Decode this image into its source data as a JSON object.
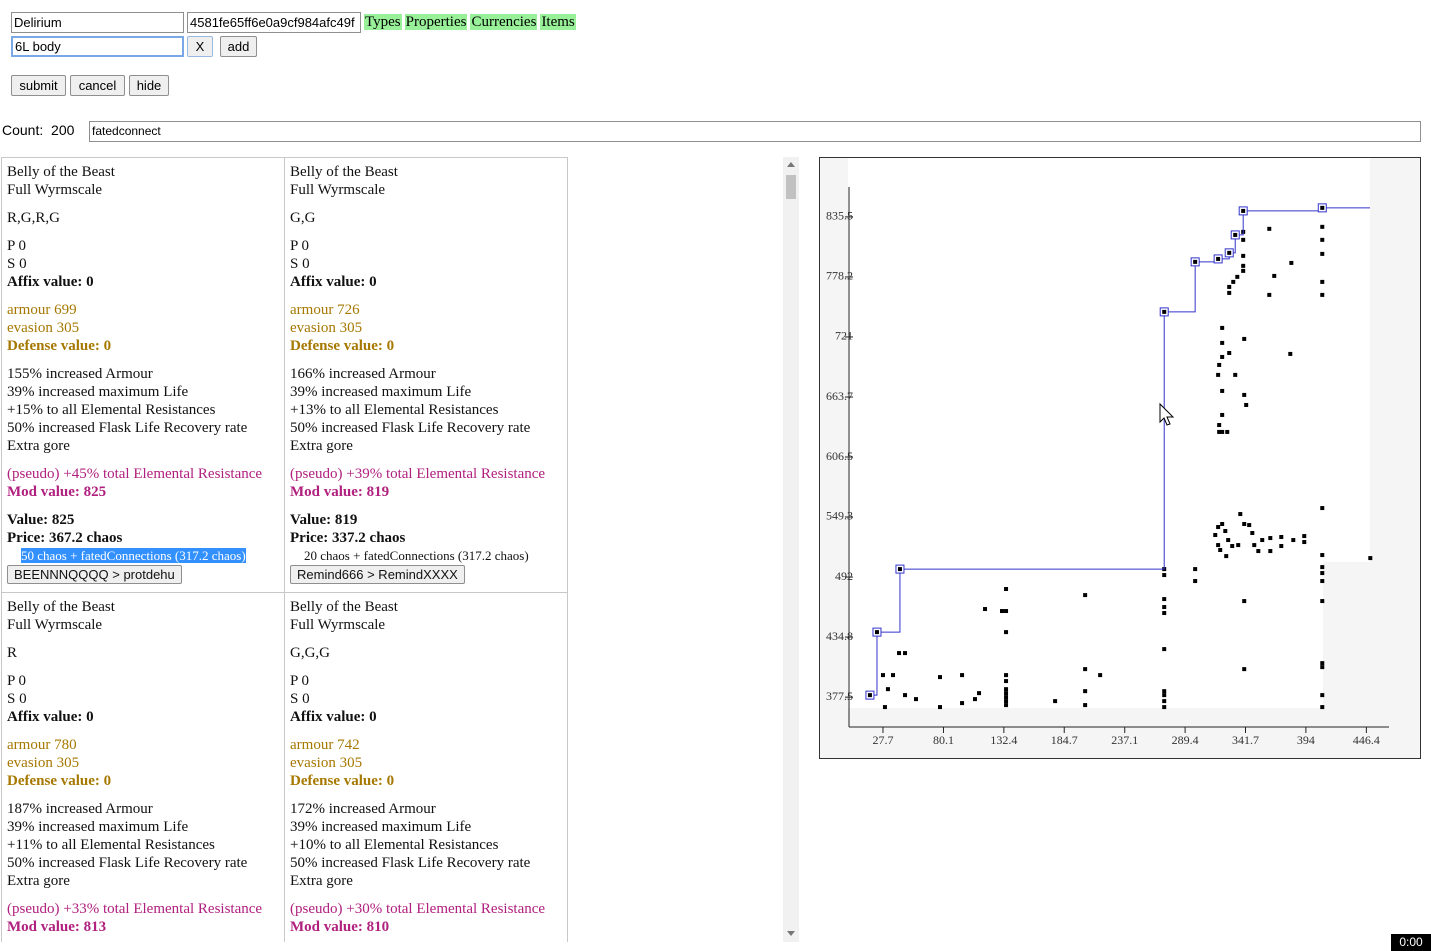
{
  "search": {
    "league": "Delirium",
    "hash": "4581fe65ff6e0a9cf984afc49f",
    "tabs": [
      "Types",
      "Properties",
      "Currencies",
      "Items"
    ],
    "query": "6L body",
    "remove_button": "X",
    "add_button": "add",
    "actions": [
      "submit",
      "cancel",
      "hide"
    ],
    "count_label": "Count:",
    "count": 200,
    "filter": "fatedconnect"
  },
  "items": [
    {
      "name": "Belly of the Beast",
      "base": "Full Wyrmscale",
      "sockets": "R,G,R,G",
      "prefix": "P 0",
      "suffix": "S 0",
      "affix_value": "Affix value: 0",
      "armour": "armour 699",
      "evasion": "evasion 305",
      "defense_value": "Defense value: 0",
      "mods": [
        "155% increased Armour",
        "39% increased maximum Life",
        "+15% to all Elemental Resistances",
        "50% increased Flask Life Recovery rate",
        "Extra gore"
      ],
      "pseudo": "(pseudo) +45% total Elemental Resistance",
      "mod_value": "Mod value: 825",
      "value": "Value: 825",
      "price": "Price: 367.2 chaos",
      "price_detail": "50 chaos + fatedConnections (317.2 chaos)",
      "seller": "BEENNNQQQQ > protdehu"
    },
    {
      "name": "Belly of the Beast",
      "base": "Full Wyrmscale",
      "sockets": "G,G",
      "prefix": "P 0",
      "suffix": "S 0",
      "affix_value": "Affix value: 0",
      "armour": "armour 726",
      "evasion": "evasion 305",
      "defense_value": "Defense value: 0",
      "mods": [
        "166% increased Armour",
        "39% increased maximum Life",
        "+13% to all Elemental Resistances",
        "50% increased Flask Life Recovery rate",
        "Extra gore"
      ],
      "pseudo": "(pseudo) +39% total Elemental Resistance",
      "mod_value": "Mod value: 819",
      "value": "Value: 819",
      "price": "Price: 337.2 chaos",
      "price_detail": "20 chaos + fatedConnections (317.2 chaos)",
      "seller": "Remind666 > RemindXXXX"
    },
    {
      "name": "Belly of the Beast",
      "base": "Full Wyrmscale",
      "sockets": "R",
      "prefix": "P 0",
      "suffix": "S 0",
      "affix_value": "Affix value: 0",
      "armour": "armour 780",
      "evasion": "evasion 305",
      "defense_value": "Defense value: 0",
      "mods": [
        "187% increased Armour",
        "39% increased maximum Life",
        "+11% to all Elemental Resistances",
        "50% increased Flask Life Recovery rate",
        "Extra gore"
      ],
      "pseudo": "(pseudo) +33% total Elemental Resistance",
      "mod_value": "Mod value: 813"
    },
    {
      "name": "Belly of the Beast",
      "base": "Full Wyrmscale",
      "sockets": "G,G,G",
      "prefix": "P 0",
      "suffix": "S 0",
      "affix_value": "Affix value: 0",
      "armour": "armour 742",
      "evasion": "evasion 305",
      "defense_value": "Defense value: 0",
      "mods": [
        "172% increased Armour",
        "39% increased maximum Life",
        "+10% to all Elemental Resistances",
        "50% increased Flask Life Recovery rate",
        "Extra gore"
      ],
      "pseudo": "(pseudo) +30% total Elemental Resistance",
      "mod_value": "Mod value: 810"
    }
  ],
  "chart_data": {
    "type": "scatter",
    "xlim": [
      0,
      466
    ],
    "ylim": [
      349,
      864
    ],
    "xticks": [
      27.7,
      80.1,
      132.4,
      184.7,
      237.1,
      289.4,
      341.7,
      394,
      446.4
    ],
    "yticks": [
      377.5,
      434.8,
      492,
      549.3,
      606.5,
      663.7,
      721,
      778.2,
      835.5
    ],
    "series": [
      {
        "type": "scatter",
        "color": "#000000",
        "x": [
          27.7,
          36.4,
          29.4,
          32.0,
          41.6,
          46.8,
          46.8,
          56.3,
          77.1,
          77.1,
          96.2,
          96.2,
          107.4,
          110.9,
          116.1,
          130.8,
          134.3,
          134.3,
          134.3,
          134.3,
          134.3,
          134.3,
          134.3,
          134.3,
          134.3,
          134.3,
          176.8,
          202.8,
          202.8,
          202.8,
          202.8,
          215.8,
          271.3,
          271.3,
          271.3,
          271.3,
          271.3,
          271.3,
          271.3,
          271.3,
          271.3,
          271.3,
          298.1,
          298.1,
          340.6,
          340.6,
          408.2,
          408.2,
          408.2,
          408.2,
          408.2,
          408.2,
          408.2,
          408.2,
          408.2,
          408.2,
          449.8,
          315.5,
          318.0,
          321.5,
          324.2,
          326.7,
          318.0,
          319.8,
          325.0,
          330.2,
          335.4,
          337.2,
          340.6,
          344.9,
          347.6,
          349.3,
          352.8,
          356.2,
          363.2,
          363.2,
          372.7,
          372.7,
          383.1,
          392.6,
          392.6,
          321.5,
          321.5,
          318.9,
          318.0,
          321.5,
          327.6,
          332.8,
          321.5,
          321.5,
          318.9,
          321.5,
          318.9,
          325.9,
          340.6,
          340.6,
          342.3,
          380.5,
          327.6,
          331.1,
          327.6,
          339.7,
          339.7,
          339.7,
          339.7,
          339.7,
          334.6,
          362.3,
          366.6,
          362.3,
          381.4,
          408.2,
          408.2,
          408.2,
          408.2,
          408.2
        ],
        "y": [
          398.5,
          398.5,
          368.0,
          385.1,
          419.5,
          419.5,
          379.4,
          375.6,
          396.6,
          368.0,
          398.5,
          371.8,
          375.6,
          381.3,
          461.5,
          459.6,
          480.6,
          459.6,
          439.5,
          398.5,
          392.8,
          385.1,
          381.3,
          377.5,
          373.7,
          369.9,
          373.7,
          474.8,
          404.2,
          383.2,
          369.9,
          398.5,
          499.6,
          493.9,
          471.0,
          463.4,
          457.7,
          423.3,
          383.2,
          379.4,
          373.7,
          368.0,
          499.6,
          488.2,
          469.1,
          404.2,
          557.8,
          513.0,
          501.5,
          495.8,
          488.2,
          469.1,
          409.9,
          406.1,
          379.4,
          368.0,
          510.1,
          532.1,
          539.7,
          542.6,
          535.9,
          527.3,
          522.5,
          517.8,
          512.0,
          521.6,
          522.5,
          552.1,
          542.6,
          541.6,
          534.0,
          522.5,
          516.8,
          527.3,
          529.2,
          516.8,
          530.2,
          521.6,
          527.3,
          531.1,
          525.4,
          729.6,
          715.3,
          694.3,
          684.8,
          701.9,
          705.7,
          684.8,
          669.5,
          646.6,
          637.0,
          630.4,
          630.4,
          630.4,
          719.1,
          665.7,
          656.1,
          704.8,
          768.7,
          773.5,
          763.0,
          821.2,
          813.6,
          798.3,
          788.8,
          784.0,
          778.3,
          824.1,
          779.2,
          761.1,
          791.6,
          826.0,
          813.6,
          800.2,
          773.5,
          761.1
        ]
      },
      {
        "type": "step",
        "color": "#3333cc",
        "x": [
          16.4,
          22.5,
          42.4,
          271.3,
          298.1,
          318.0,
          327.6,
          332.8,
          339.7,
          408.2
        ],
        "y": [
          379.4,
          439.5,
          499.6,
          744.9,
          792.6,
          795.4,
          801.2,
          818.3,
          841.2,
          844.1
        ]
      }
    ]
  },
  "recorder_time": "0:00"
}
